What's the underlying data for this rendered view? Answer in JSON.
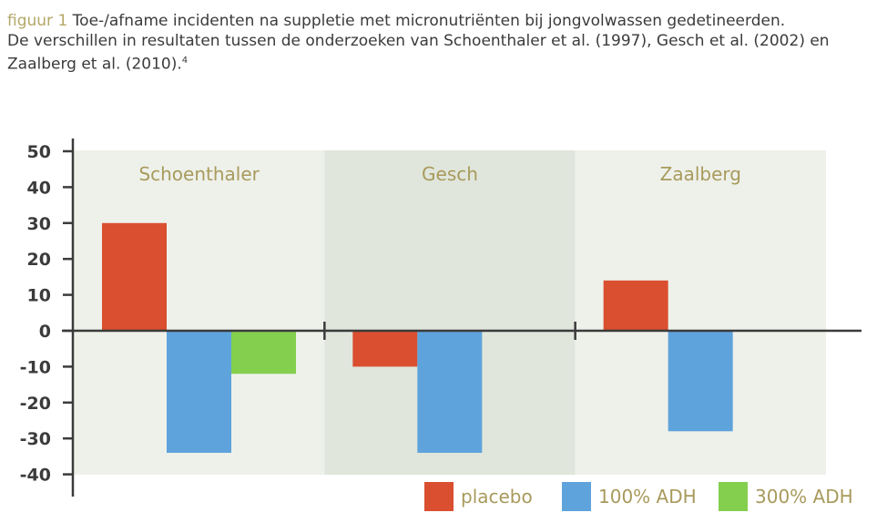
{
  "caption": {
    "figure_label": "figuur 1",
    "line1": "Toe-/afname incidenten na suppletie met micronutriënten bij jongvolwassen gedetineerden.",
    "line2": "De verschillen in resultaten tussen de onderzoeken van Schoenthaler et al. (1997), Gesch et al. (2002) en",
    "line3": "Zaalberg et al. (2010).",
    "superscript": "4"
  },
  "chart_data": {
    "type": "bar",
    "title": "",
    "xlabel": "",
    "ylabel": "",
    "ylim": [
      -40,
      50
    ],
    "yticks": [
      50,
      40,
      30,
      20,
      10,
      0,
      -10,
      -20,
      -30,
      -40
    ],
    "grid": false,
    "legend_position": "bottom-right",
    "categories": [
      "Schoenthaler",
      "Gesch",
      "Zaalberg"
    ],
    "series": [
      {
        "name": "placebo",
        "color": "#d94f30",
        "values": [
          30,
          -10,
          14
        ]
      },
      {
        "name": "100% ADH",
        "color": "#5ea3dc",
        "values": [
          -34,
          -34,
          -28
        ]
      },
      {
        "name": "300% ADH",
        "color": "#84cf4e",
        "values": [
          -12,
          null,
          null
        ]
      }
    ],
    "panel_colors": [
      "#eef1ea",
      "#e0e6dc",
      "#eef1ea"
    ]
  }
}
